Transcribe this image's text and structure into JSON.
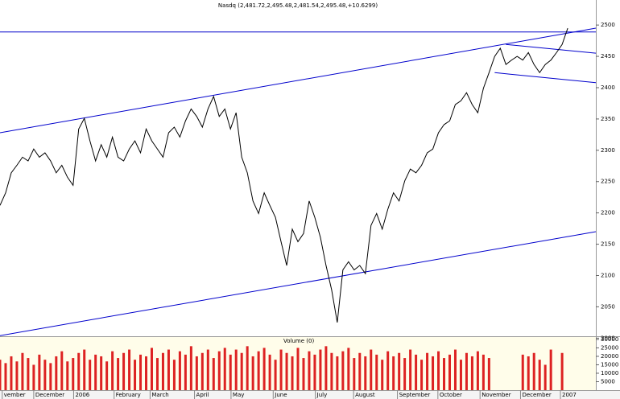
{
  "chart_data": [
    {
      "type": "line",
      "title": "Nasdq (2,481.72,2,495.48,2,481.54,2,495.48,+10.6299)",
      "color": "#000000",
      "x": [
        0,
        1,
        2,
        3,
        4,
        5,
        6,
        7,
        8,
        9,
        10,
        11,
        12,
        13,
        14,
        15,
        16,
        17,
        18,
        19,
        20,
        21,
        22,
        23,
        24,
        25,
        26,
        27,
        28,
        29,
        30,
        31,
        32,
        33,
        34,
        35,
        36,
        37,
        38,
        39,
        40,
        41,
        42,
        43,
        44,
        45,
        46,
        47,
        48,
        49,
        50,
        51,
        52,
        53,
        54,
        55,
        56,
        57,
        58,
        59,
        60,
        61,
        62,
        63,
        64,
        65,
        66,
        67,
        68,
        69,
        70,
        71,
        72,
        73,
        74,
        75,
        76,
        77,
        78,
        79,
        80,
        81,
        82,
        83,
        84,
        85,
        86,
        87,
        88,
        89,
        90,
        91,
        92,
        93,
        94,
        95,
        96,
        97,
        98,
        99,
        100,
        101
      ],
      "values": [
        2212,
        2232,
        2264,
        2276,
        2289,
        2283,
        2302,
        2289,
        2296,
        2283,
        2264,
        2276,
        2257,
        2244,
        2334,
        2351,
        2315,
        2283,
        2309,
        2289,
        2321,
        2289,
        2283,
        2302,
        2315,
        2296,
        2334,
        2315,
        2302,
        2289,
        2328,
        2337,
        2321,
        2347,
        2366,
        2354,
        2337,
        2366,
        2386,
        2354,
        2366,
        2334,
        2360,
        2289,
        2264,
        2219,
        2199,
        2232,
        2212,
        2193,
        2154,
        2116,
        2174,
        2154,
        2167,
        2219,
        2193,
        2161,
        2116,
        2077,
        2025,
        2109,
        2122,
        2109,
        2116,
        2103,
        2180,
        2199,
        2174,
        2206,
        2232,
        2219,
        2251,
        2270,
        2264,
        2276,
        2296,
        2302,
        2328,
        2341,
        2347,
        2373,
        2379,
        2392,
        2373,
        2360,
        2399,
        2424,
        2450,
        2463,
        2437,
        2444,
        2450,
        2444,
        2456,
        2437,
        2424,
        2437,
        2444,
        2456,
        2469,
        2495
      ],
      "xlim": [
        0,
        106
      ],
      "ylim": [
        2003,
        2540
      ],
      "yticks": [
        2000,
        2050,
        2100,
        2150,
        2200,
        2250,
        2300,
        2350,
        2400,
        2450,
        2500
      ],
      "xticks": [
        {
          "value": 0.4,
          "label": "vember"
        },
        {
          "value": 6,
          "label": "December"
        },
        {
          "value": 13.1,
          "label": "2006"
        },
        {
          "value": 20.3,
          "label": "February"
        },
        {
          "value": 26.7,
          "label": "March"
        },
        {
          "value": 34.6,
          "label": "April"
        },
        {
          "value": 41.1,
          "label": "May"
        },
        {
          "value": 48.6,
          "label": "June"
        },
        {
          "value": 56.1,
          "label": "July"
        },
        {
          "value": 62.9,
          "label": "August"
        },
        {
          "value": 70.7,
          "label": "September"
        },
        {
          "value": 77.9,
          "label": "October"
        },
        {
          "value": 85.4,
          "label": "November"
        },
        {
          "value": 92.6,
          "label": "December"
        },
        {
          "value": 99.7,
          "label": "2007"
        }
      ],
      "trend_color": "#0000cc",
      "trend_lines": [
        {
          "x": [
            0,
            106
          ],
          "y": [
            2328,
            2495
          ]
        },
        {
          "x": [
            0,
            106
          ],
          "y": [
            2489,
            2489
          ]
        },
        {
          "x": [
            0,
            106
          ],
          "y": [
            2004,
            2170
          ]
        },
        {
          "x": [
            88,
            106
          ],
          "y": [
            2424,
            2408
          ]
        },
        {
          "x": [
            90,
            106
          ],
          "y": [
            2469,
            2455
          ]
        }
      ]
    },
    {
      "type": "bar",
      "title": "Volume (0)",
      "color": "#dd2222",
      "x": [
        0,
        1,
        2,
        3,
        4,
        5,
        6,
        7,
        8,
        9,
        10,
        11,
        12,
        13,
        14,
        15,
        16,
        17,
        18,
        19,
        20,
        21,
        22,
        23,
        24,
        25,
        26,
        27,
        28,
        29,
        30,
        31,
        32,
        33,
        34,
        35,
        36,
        37,
        38,
        39,
        40,
        41,
        42,
        43,
        44,
        45,
        46,
        47,
        48,
        49,
        50,
        51,
        52,
        53,
        54,
        55,
        56,
        57,
        58,
        59,
        60,
        61,
        62,
        63,
        64,
        65,
        66,
        67,
        68,
        69,
        70,
        71,
        72,
        73,
        74,
        75,
        76,
        77,
        78,
        79,
        80,
        81,
        82,
        83,
        84,
        85,
        86,
        87,
        88,
        89,
        90,
        91,
        92,
        93,
        94,
        95,
        96,
        97,
        98,
        99,
        100,
        101
      ],
      "values": [
        18000,
        16000,
        20000,
        17000,
        22000,
        19000,
        15000,
        21000,
        18000,
        16000,
        20000,
        23000,
        17000,
        19000,
        22000,
        24000,
        18000,
        21000,
        20000,
        17000,
        23000,
        19000,
        22000,
        24000,
        18000,
        21000,
        20000,
        25000,
        19000,
        22000,
        24000,
        18000,
        23000,
        21000,
        26000,
        20000,
        22000,
        24000,
        19000,
        23000,
        25000,
        21000,
        24000,
        22000,
        26000,
        20000,
        23000,
        25000,
        21000,
        18000,
        24000,
        22000,
        20000,
        25000,
        19000,
        23000,
        21000,
        24000,
        26000,
        22000,
        20000,
        23000,
        25000,
        19000,
        22000,
        20000,
        24000,
        21000,
        18000,
        23000,
        20000,
        22000,
        19000,
        24000,
        21000,
        18000,
        22000,
        20000,
        23000,
        19000,
        21000,
        24000,
        18000,
        22000,
        20000,
        23000,
        21000,
        19000,
        null,
        null,
        null,
        null,
        null,
        21000,
        20000,
        22000,
        18000,
        15000,
        24000,
        null,
        22000,
        null
      ],
      "xlim": [
        0,
        106
      ],
      "ylim": [
        0,
        31400
      ],
      "yticks": [
        5000,
        10000,
        15000,
        20000,
        25000,
        30000
      ]
    }
  ]
}
